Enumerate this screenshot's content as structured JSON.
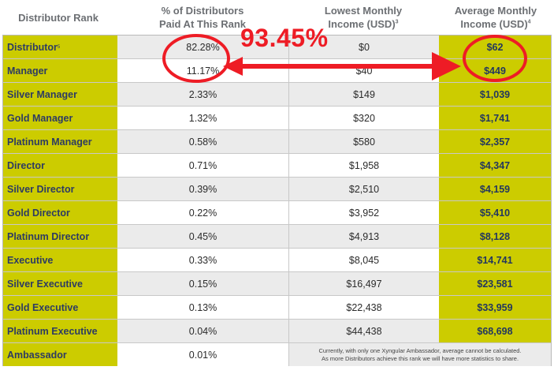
{
  "headers": {
    "rank": "Distributor Rank",
    "pct_line1": "% of Distributors",
    "pct_line2": "Paid At This Rank",
    "low_line1": "Lowest Monthly",
    "low_line2": "Income (USD)",
    "low_sup": "3",
    "avg_line1": "Average Monthly",
    "avg_line2": "Income (USD)",
    "avg_sup": "4"
  },
  "rows": [
    {
      "rank": "Distributor",
      "sup": "5",
      "pct": "82.28%",
      "low": "$0",
      "avg": "$62"
    },
    {
      "rank": "Manager",
      "pct": "11.17%",
      "low": "$40",
      "avg": "$449"
    },
    {
      "rank": "Silver Manager",
      "pct": "2.33%",
      "low": "$149",
      "avg": "$1,039"
    },
    {
      "rank": "Gold Manager",
      "pct": "1.32%",
      "low": "$320",
      "avg": "$1,741"
    },
    {
      "rank": "Platinum Manager",
      "pct": "0.58%",
      "low": "$580",
      "avg": "$2,357"
    },
    {
      "rank": "Director",
      "pct": "0.71%",
      "low": "$1,958",
      "avg": "$4,347"
    },
    {
      "rank": "Silver Director",
      "pct": "0.39%",
      "low": "$2,510",
      "avg": "$4,159"
    },
    {
      "rank": "Gold Director",
      "pct": "0.22%",
      "low": "$3,952",
      "avg": "$5,410"
    },
    {
      "rank": "Platinum Director",
      "pct": "0.45%",
      "low": "$4,913",
      "avg": "$8,128"
    },
    {
      "rank": "Executive",
      "pct": "0.33%",
      "low": "$8,045",
      "avg": "$14,741"
    },
    {
      "rank": "Silver Executive",
      "pct": "0.15%",
      "low": "$16,497",
      "avg": "$23,581"
    },
    {
      "rank": "Gold Executive",
      "pct": "0.13%",
      "low": "$22,438",
      "avg": "$33,959"
    },
    {
      "rank": "Platinum Executive",
      "pct": "0.04%",
      "low": "$44,438",
      "avg": "$68,698"
    },
    {
      "rank": "Ambassador",
      "pct": "0.01%",
      "note_line1": "Currently, with only one Xyngular Ambassador, average cannot be calculated.",
      "note_line2": "As more Distributors achieve this rank we will have more statistics to share."
    }
  ],
  "annotation": {
    "total_text": "93.45%",
    "color": "#ee1c25"
  },
  "colors": {
    "highlight": "#cccc00",
    "rank_text": "#2d3b63",
    "header_text": "#6c6f73"
  }
}
